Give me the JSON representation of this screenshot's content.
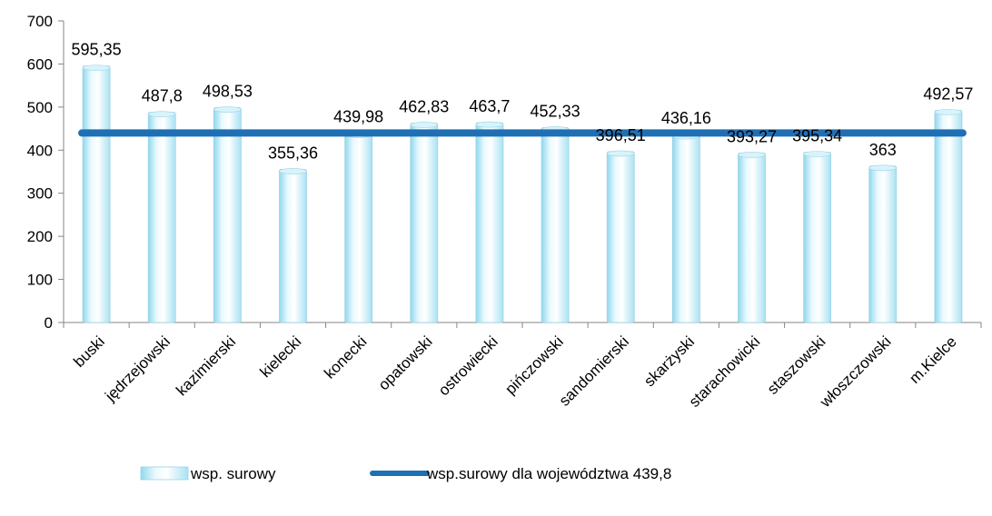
{
  "chart_data": {
    "type": "bar",
    "categories": [
      "buski",
      "jędrzejowski",
      "kazimierski",
      "kielecki",
      "konecki",
      "opatowski",
      "ostrowiecki",
      "pińczowski",
      "sandomierski",
      "skarżyski",
      "starachowicki",
      "staszowski",
      "włoszczowski",
      "m.Kielce"
    ],
    "series": [
      {
        "name": "wsp. surowy",
        "values": [
          595.35,
          487.8,
          498.53,
          355.36,
          439.98,
          462.83,
          463.7,
          452.33,
          396.51,
          436.16,
          393.27,
          395.34,
          363,
          492.57
        ],
        "labels": [
          "595,35",
          "487,8",
          "498,53",
          "355,36",
          "439,98",
          "462,83",
          "463,7",
          "452,33",
          "396,51",
          "436,16",
          "393,27",
          "395,34",
          "363",
          "492,57"
        ],
        "color": "#c5ecf7"
      },
      {
        "name": "wsp.surowy dla województwa 439,8",
        "type": "line",
        "value": 439.8,
        "color": "#1f6fb5"
      }
    ],
    "ylim": [
      0,
      700
    ],
    "yticks": [
      0,
      100,
      200,
      300,
      400,
      500,
      600,
      700
    ],
    "title": "",
    "xlabel": "",
    "ylabel": "",
    "grid": false,
    "legend_position": "bottom"
  }
}
